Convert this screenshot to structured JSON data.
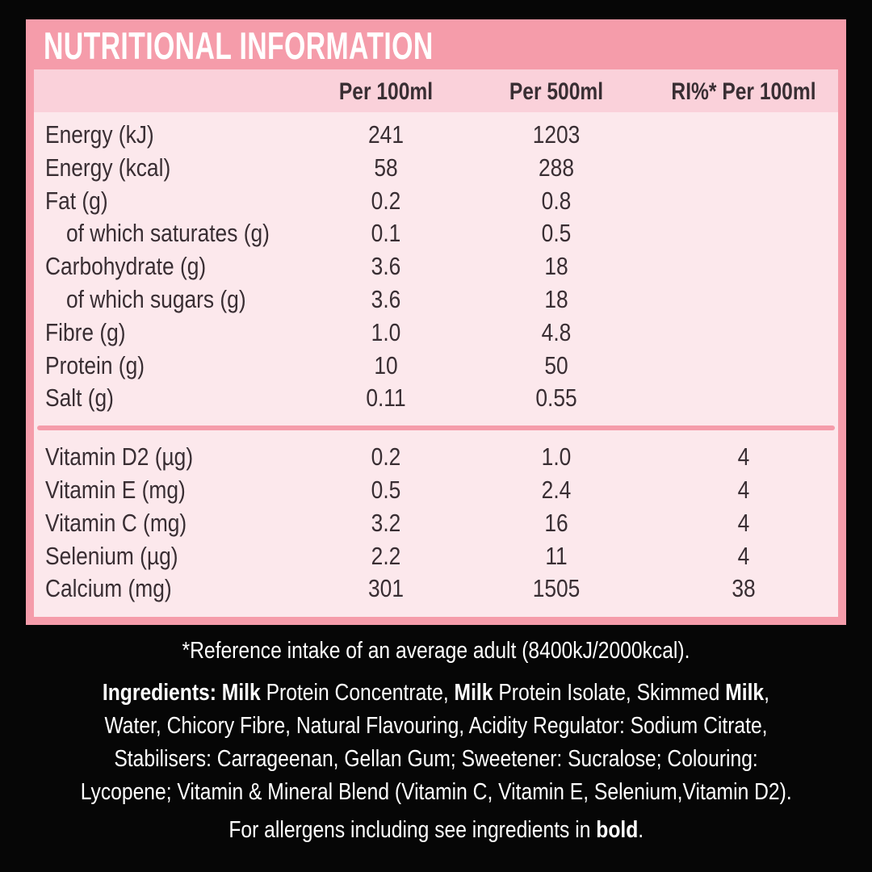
{
  "title": "NUTRITIONAL INFORMATION",
  "colors": {
    "panel_pink": "#f59caa",
    "header_band_pink": "#fad1da",
    "body_pink": "#fce8ec",
    "table_ink": "#392e33",
    "background": "#060606",
    "footer_text": "#ffffff"
  },
  "table": {
    "columns": {
      "per_100ml": "Per 100ml",
      "per_500ml": "Per 500ml",
      "ri_per_100ml": "RI%* Per 100ml"
    },
    "rows": [
      {
        "label": "Energy (kJ)",
        "per_100ml": "241",
        "per_500ml": "1203",
        "ri_per_100ml": ""
      },
      {
        "label": "Energy (kcal)",
        "per_100ml": "58",
        "per_500ml": "288",
        "ri_per_100ml": ""
      },
      {
        "label": "Fat (g)",
        "per_100ml": "0.2",
        "per_500ml": "0.8",
        "ri_per_100ml": ""
      },
      {
        "label": "of which saturates (g)",
        "per_100ml": "0.1",
        "per_500ml": "0.5",
        "ri_per_100ml": ""
      },
      {
        "label": "Carbohydrate (g)",
        "per_100ml": "3.6",
        "per_500ml": "18",
        "ri_per_100ml": ""
      },
      {
        "label": "of which sugars (g)",
        "per_100ml": "3.6",
        "per_500ml": "18",
        "ri_per_100ml": ""
      },
      {
        "label": "Fibre (g)",
        "per_100ml": "1.0",
        "per_500ml": "4.8",
        "ri_per_100ml": ""
      },
      {
        "label": "Protein (g)",
        "per_100ml": "10",
        "per_500ml": "50",
        "ri_per_100ml": ""
      },
      {
        "label": "Salt (g)",
        "per_100ml": "0.11",
        "per_500ml": "0.55",
        "ri_per_100ml": ""
      },
      {
        "label": "Vitamin D2 (µg)",
        "per_100ml": "0.2",
        "per_500ml": "1.0",
        "ri_per_100ml": "4"
      },
      {
        "label": "Vitamin E (mg)",
        "per_100ml": "0.5",
        "per_500ml": "2.4",
        "ri_per_100ml": "4"
      },
      {
        "label": "Vitamin C (mg)",
        "per_100ml": "3.2",
        "per_500ml": "16",
        "ri_per_100ml": "4"
      },
      {
        "label": "Selenium (µg)",
        "per_100ml": "2.2",
        "per_500ml": "11",
        "ri_per_100ml": "4"
      },
      {
        "label": "Calcium (mg)",
        "per_100ml": "301",
        "per_500ml": "1505",
        "ri_per_100ml": "38"
      }
    ]
  },
  "footnote": "*Reference intake of an average adult (8400kJ/2000kcal).",
  "ingredients": {
    "line1": {
      "b1": "Ingredients: Milk",
      "r1": " Protein Concentrate, ",
      "b2": "Milk",
      "r2": " Protein Isolate, Skimmed ",
      "b3": "Milk",
      "r3": ","
    },
    "line2": "Water, Chicory Fibre, Natural Flavouring, Acidity Regulator: Sodium Citrate,",
    "line3": "Stabilisers: Carrageenan, Gellan Gum; Sweetener: Sucralose; Colouring:",
    "line4": "Lycopene; Vitamin & Mineral Blend (Vitamin C, Vitamin E, Selenium,Vitamin D2)."
  },
  "allergen_note": {
    "prefix": "For allergens including see ingredients in ",
    "bold": "bold",
    "suffix": "."
  }
}
